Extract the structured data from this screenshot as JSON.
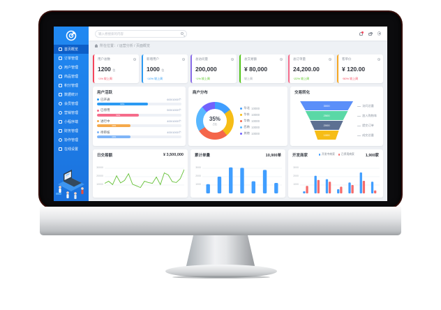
{
  "sidebar": {
    "items": [
      {
        "label": "首页概览",
        "active": true
      },
      {
        "label": "订单管理",
        "active": false
      },
      {
        "label": "用户管理",
        "active": false
      },
      {
        "label": "商品管理",
        "active": false
      },
      {
        "label": "积分管理",
        "active": false
      },
      {
        "label": "数据统计",
        "active": false
      },
      {
        "label": "会员管理",
        "active": false
      },
      {
        "label": "营销管理",
        "active": false
      },
      {
        "label": "小程序端",
        "active": false
      },
      {
        "label": "财务管理",
        "active": false
      },
      {
        "label": "协作管理",
        "active": false
      },
      {
        "label": "在线设置",
        "active": false
      }
    ]
  },
  "header": {
    "search_placeholder": "输入想搜索的内容",
    "breadcrumb": "所在位置：/ 运营分析 / 页面概览"
  },
  "kpi": {
    "cards": [
      {
        "label": "用户总数",
        "value": "1200",
        "unit": "位",
        "change": "↑1% 较上周",
        "accent": "#f5455b",
        "change_color": "#f5455b"
      },
      {
        "label": "新增用户",
        "value": "1000",
        "unit": "位",
        "change": "↑10% 较上周",
        "accent": "#2b9af3",
        "change_color": "#2b9af3"
      },
      {
        "label": "总访问量",
        "value": "200,000",
        "unit": "",
        "change": "↑1% 较上周",
        "accent": "#8a6de9",
        "change_color": "#52c41a"
      },
      {
        "label": "总交易额",
        "value": "¥ 80,000",
        "unit": "",
        "change": "较上周",
        "accent": "#52c41a",
        "change_color": "#9aa0a8"
      },
      {
        "label": "总订单量",
        "value": "24,200.00",
        "unit": "",
        "change": "↑22% 较上周",
        "accent": "#f56c8b",
        "change_color": "#52c41a"
      },
      {
        "label": "客单价",
        "value": "¥ 120.00",
        "unit": "",
        "change": "↑50% 较上周",
        "accent": "#f5a623",
        "change_color": "#f5455b"
      }
    ]
  },
  "activity": {
    "title": "用户活跃",
    "items": [
      {
        "label": "已开通",
        "value": "600/1000个",
        "pct": "60%",
        "pct_num": 60,
        "color": "#2b9af3"
      },
      {
        "label": "已停用",
        "value": "500/1000个",
        "pct": "50%",
        "pct_num": 50,
        "color": "#f56c8b"
      },
      {
        "label": "进行中",
        "value": "400/1000个",
        "pct": "40%",
        "pct_num": 40,
        "color": "#f5a94b"
      },
      {
        "label": "待审核",
        "value": "400/1000个",
        "pct": "40%",
        "pct_num": 40,
        "color": "#7fb5f7"
      }
    ]
  },
  "distribution": {
    "title": "商户分布",
    "center_value": "35%",
    "center_label": "占比",
    "segments": [
      {
        "label": "华北",
        "value": "10000",
        "pct": 15,
        "color": "#409EFF"
      },
      {
        "label": "华东",
        "value": "10000",
        "pct": 24,
        "color": "#F6BD16"
      },
      {
        "label": "华南",
        "value": "10000",
        "pct": 27,
        "color": "#F4664A"
      },
      {
        "label": "西南",
        "value": "10000",
        "pct": 22,
        "color": "#58B7FF"
      },
      {
        "label": "其他",
        "value": "10000",
        "pct": 12,
        "color": "#7262FD"
      }
    ]
  },
  "funnel": {
    "title": "交易转化",
    "widths": [
      100,
      80,
      62,
      46,
      34
    ],
    "layers": [
      {
        "label": "访问总量",
        "value": "3000",
        "color": "#5B8FF9"
      },
      {
        "label": "加入购物车",
        "value": "2500",
        "color": "#5AD8A6"
      },
      {
        "label": "提交订单",
        "value": "2000",
        "color": "#5D7092"
      },
      {
        "label": "成交总量",
        "value": "1000",
        "color": "#F6BD16"
      }
    ]
  },
  "charts": {
    "daily": {
      "type": "line",
      "title": "日交易额",
      "total": "¥ 3,500,000",
      "yticks": [
        "30000",
        "20000",
        "10000"
      ],
      "ymax": 40000,
      "color": "#67C23A",
      "values": [
        12000,
        14500,
        10500,
        21000,
        12500,
        15500,
        23500,
        11000,
        9000,
        7000,
        14500,
        13000,
        12000,
        19500,
        10500,
        24500,
        22000,
        14000,
        13000,
        17500,
        28500
      ]
    },
    "orders": {
      "type": "bar",
      "title": "累计单量",
      "total": "10,900单",
      "yticks": [
        "3000",
        "2000",
        "1000"
      ],
      "ymax": 4000,
      "color": "#409EFF",
      "values": [
        1100,
        2000,
        3100,
        3050,
        1450,
        2800,
        1250
      ]
    },
    "merchants": {
      "type": "grouped-bar",
      "title": "开发商家",
      "total": "1,900家",
      "yticks": [
        "3000",
        "2000",
        "1000"
      ],
      "ymax": 4000,
      "series": [
        {
          "name": "开发中商家",
          "color": "#409EFF",
          "values": [
            250,
            2100,
            1700,
            500,
            1300,
            2500,
            1400
          ]
        },
        {
          "name": "已停用商家",
          "color": "#F56C6C",
          "values": [
            900,
            1600,
            1400,
            800,
            1000,
            1500,
            350
          ]
        }
      ]
    }
  }
}
